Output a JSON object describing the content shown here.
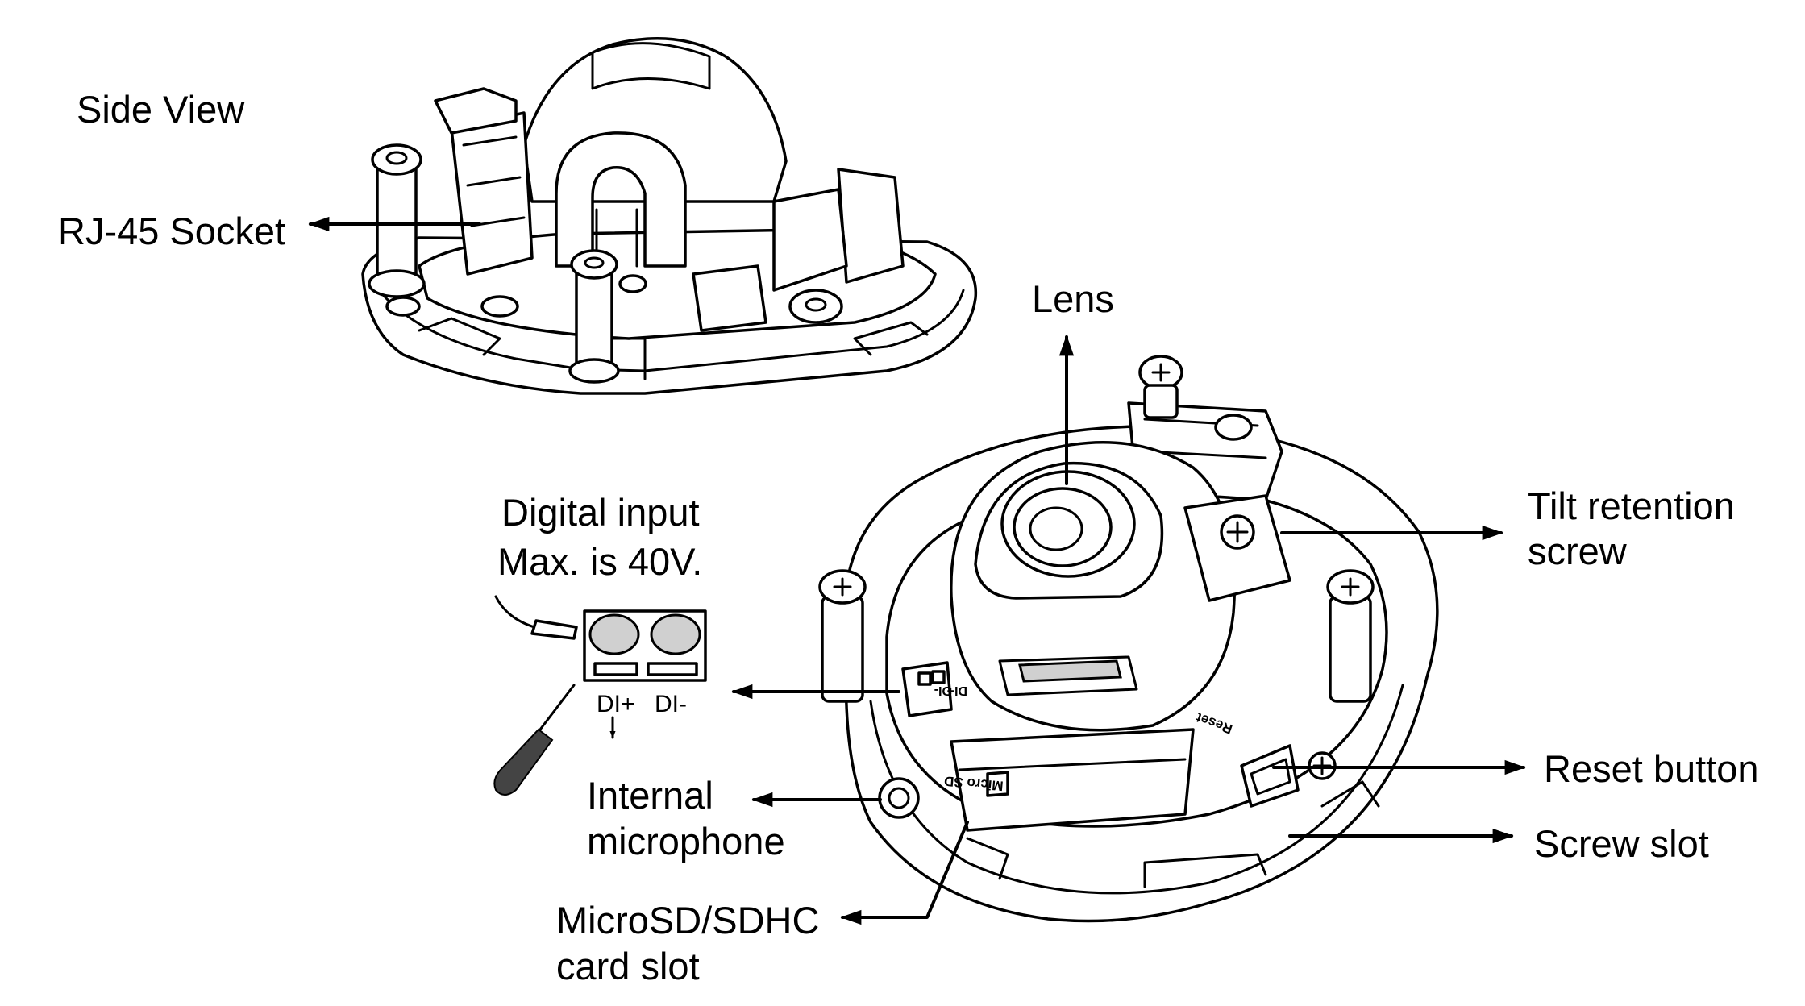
{
  "labels": {
    "side_view": "Side View",
    "rj45": "RJ-45 Socket",
    "lens": "Lens",
    "digital_input_1": "Digital input",
    "digital_input_2": "Max. is 40V.",
    "di_plus": "DI+",
    "di_minus": "DI-",
    "tilt_1": "Tilt retention",
    "tilt_2": "screw",
    "internal_mic_1": "Internal",
    "internal_mic_2": "microphone",
    "reset": "Reset button",
    "screw_slot": "Screw slot",
    "microsd_1": "MicroSD/SDHC",
    "microsd_2": "card slot",
    "engraved_reset": "Reset",
    "engraved_microsd": "Micro SD",
    "engraved_di_plus": "DI+",
    "engraved_di_minus": "DI-"
  }
}
